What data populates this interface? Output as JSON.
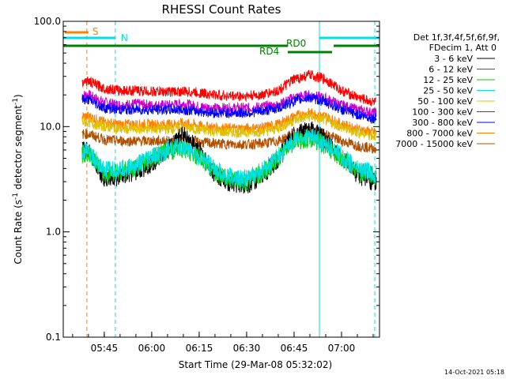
{
  "chart_data": {
    "type": "line",
    "title": "RHESSI Count Rates",
    "xlabel": "Start Time (29-Mar-08 05:32:02)",
    "ylabel_parts": {
      "a": "Count Rate (s",
      "sup": "-1",
      "b": " detector segment",
      "sup2": "-1",
      "c": ")"
    },
    "xlim": [
      "05:32:02",
      "07:12:00"
    ],
    "ylim": [
      0.1,
      100
    ],
    "yscale": "log",
    "x_ticks": [
      "05:45",
      "06:00",
      "06:15",
      "06:30",
      "06:45",
      "07:00"
    ],
    "y_ticks": [
      "0.1",
      "1.0",
      "10.0",
      "100.0"
    ],
    "legend": {
      "header": [
        "Det 1f,3f,4f,5f,6f,9f,",
        "FDecim 1, Att 0"
      ],
      "placement": "right"
    },
    "series": [
      {
        "name": "3 - 6 keV",
        "color": "#000000",
        "x": [
          "05:40",
          "05:45",
          "05:50",
          "05:55",
          "06:00",
          "06:05",
          "06:10",
          "06:15",
          "06:20",
          "06:25",
          "06:30",
          "06:35",
          "06:40",
          "06:45",
          "06:50",
          "06:55",
          "07:00",
          "07:05",
          "07:10"
        ],
        "values": [
          6.0,
          3.2,
          3.3,
          3.7,
          4.5,
          6.0,
          8.5,
          6.0,
          3.5,
          2.9,
          2.8,
          3.4,
          5.0,
          8.5,
          9.5,
          7.5,
          5.0,
          3.5,
          3.0
        ]
      },
      {
        "name": "6 - 12 keV",
        "color": "#cc00cc",
        "x": [
          "05:40",
          "05:45",
          "05:50",
          "05:55",
          "06:00",
          "06:05",
          "06:10",
          "06:15",
          "06:20",
          "06:25",
          "06:30",
          "06:35",
          "06:40",
          "06:45",
          "06:50",
          "06:55",
          "07:00",
          "07:05",
          "07:10"
        ],
        "values": [
          20,
          17,
          16,
          16.5,
          16,
          16,
          16.5,
          15.5,
          15,
          15,
          15,
          15.5,
          16,
          19,
          20,
          18.5,
          16,
          14.5,
          13.5
        ]
      },
      {
        "name": "12 - 25 keV",
        "color": "#00cc00",
        "x": [
          "05:40",
          "05:45",
          "05:50",
          "05:55",
          "06:00",
          "06:05",
          "06:10",
          "06:15",
          "06:20",
          "06:25",
          "06:30",
          "06:35",
          "06:40",
          "06:45",
          "06:50",
          "06:55",
          "07:00",
          "07:05",
          "07:10"
        ],
        "values": [
          5.5,
          3.6,
          3.7,
          4.1,
          4.9,
          5.8,
          6.2,
          5.0,
          3.7,
          3.1,
          3.0,
          3.6,
          5.0,
          7.2,
          7.8,
          6.6,
          5.0,
          3.8,
          3.4
        ]
      },
      {
        "name": "25 - 50 keV",
        "color": "#00e0e0",
        "x": [
          "05:40",
          "05:45",
          "05:50",
          "05:55",
          "06:00",
          "06:05",
          "06:10",
          "06:15",
          "06:20",
          "06:25",
          "06:30",
          "06:35",
          "06:40",
          "06:45",
          "06:50",
          "06:55",
          "07:00",
          "07:05",
          "07:10"
        ],
        "values": [
          5.8,
          3.8,
          3.9,
          4.3,
          5.1,
          6.0,
          6.5,
          5.2,
          3.9,
          3.3,
          3.2,
          3.8,
          5.2,
          7.5,
          8.0,
          6.9,
          5.2,
          4.0,
          3.6
        ]
      },
      {
        "name": "50 - 100 keV",
        "color": "#e0c000",
        "x": [
          "05:40",
          "05:45",
          "05:50",
          "05:55",
          "06:00",
          "06:05",
          "06:10",
          "06:15",
          "06:20",
          "06:25",
          "06:30",
          "06:35",
          "06:40",
          "06:45",
          "06:50",
          "06:55",
          "07:00",
          "07:05",
          "07:10"
        ],
        "values": [
          11,
          10,
          9.5,
          9.5,
          9.5,
          9.5,
          9.8,
          9.3,
          9.0,
          8.8,
          8.8,
          9.0,
          9.6,
          11.5,
          12.5,
          11.5,
          9.8,
          8.8,
          8.2
        ]
      },
      {
        "name": "100 - 300 keV",
        "color": "#ff0000",
        "x": [
          "05:40",
          "05:45",
          "05:50",
          "05:55",
          "06:00",
          "06:05",
          "06:10",
          "06:15",
          "06:20",
          "06:25",
          "06:30",
          "06:35",
          "06:40",
          "06:45",
          "06:50",
          "06:55",
          "07:00",
          "07:05",
          "07:10"
        ],
        "values": [
          27,
          23,
          22,
          22,
          21.5,
          21.5,
          21.5,
          21,
          20,
          19.5,
          19.5,
          20,
          22,
          28,
          31,
          28,
          22,
          19,
          17
        ]
      },
      {
        "name": "300 - 800 keV",
        "color": "#0000ff",
        "x": [
          "05:40",
          "05:45",
          "05:50",
          "05:55",
          "06:00",
          "06:05",
          "06:10",
          "06:15",
          "06:20",
          "06:25",
          "06:30",
          "06:35",
          "06:40",
          "06:45",
          "06:50",
          "06:55",
          "07:00",
          "07:05",
          "07:10"
        ],
        "values": [
          18,
          15,
          14.5,
          14.5,
          14.5,
          14.5,
          14.5,
          14,
          13.5,
          13.5,
          13.5,
          14,
          15,
          17.5,
          19,
          17,
          14.5,
          13,
          12
        ]
      },
      {
        "name": "800 - 7000 keV",
        "color": "#ff8000",
        "x": [
          "05:40",
          "05:45",
          "05:50",
          "05:55",
          "06:00",
          "06:05",
          "06:10",
          "06:15",
          "06:20",
          "06:25",
          "06:30",
          "06:35",
          "06:40",
          "06:45",
          "06:50",
          "06:55",
          "07:00",
          "07:05",
          "07:10"
        ],
        "values": [
          12.5,
          11,
          10.5,
          10.5,
          10.5,
          10.5,
          10.8,
          10.2,
          9.8,
          9.6,
          9.6,
          9.8,
          10.5,
          12.5,
          13.5,
          12.5,
          10.5,
          9.5,
          8.8
        ]
      },
      {
        "name": "7000 - 15000 keV",
        "color": "#b05000",
        "x": [
          "05:40",
          "05:45",
          "05:50",
          "05:55",
          "06:00",
          "06:05",
          "06:10",
          "06:15",
          "06:20",
          "06:25",
          "06:30",
          "06:35",
          "06:40",
          "06:45",
          "06:50",
          "06:55",
          "07:00",
          "07:05",
          "07:10"
        ],
        "values": [
          8.5,
          7.5,
          7.3,
          7.3,
          7.3,
          7.3,
          7.5,
          7.1,
          6.9,
          6.8,
          6.8,
          6.9,
          7.3,
          8.5,
          9.2,
          8.5,
          7.3,
          6.6,
          6.2
        ]
      }
    ],
    "state_bars": [
      {
        "label": "S",
        "color": "#ff8000",
        "y_level": 1,
        "segments": [
          [
            "05:32:30",
            "05:40:00"
          ]
        ]
      },
      {
        "label": "N",
        "color": "#00e0e0",
        "y_level": 2,
        "segments": [
          [
            "05:32:02",
            "05:48:30"
          ],
          [
            "06:53:00",
            "07:12:00"
          ]
        ]
      },
      {
        "label": "RD0",
        "color": "#008000",
        "y_level": 3,
        "segments": [
          [
            "05:32:02",
            "06:43:00"
          ],
          [
            "06:57:30",
            "07:12:00"
          ]
        ]
      },
      {
        "label": "RD4",
        "color": "#008000",
        "y_level": 4,
        "segments": [
          [
            "06:43:00",
            "06:57:00"
          ]
        ]
      }
    ],
    "vertical_markers": [
      {
        "x": "05:39:30",
        "color": "#ff8000",
        "style": "dashed"
      },
      {
        "x": "05:48:30",
        "color": "#00e0e0",
        "style": "dashed"
      },
      {
        "x": "06:53:00",
        "color": "#00e0e0",
        "style": "solid"
      },
      {
        "x": "07:10:30",
        "color": "#00e0e0",
        "style": "dashed"
      }
    ],
    "grid": false
  },
  "timestamp": "14-Oct-2021 05:18"
}
